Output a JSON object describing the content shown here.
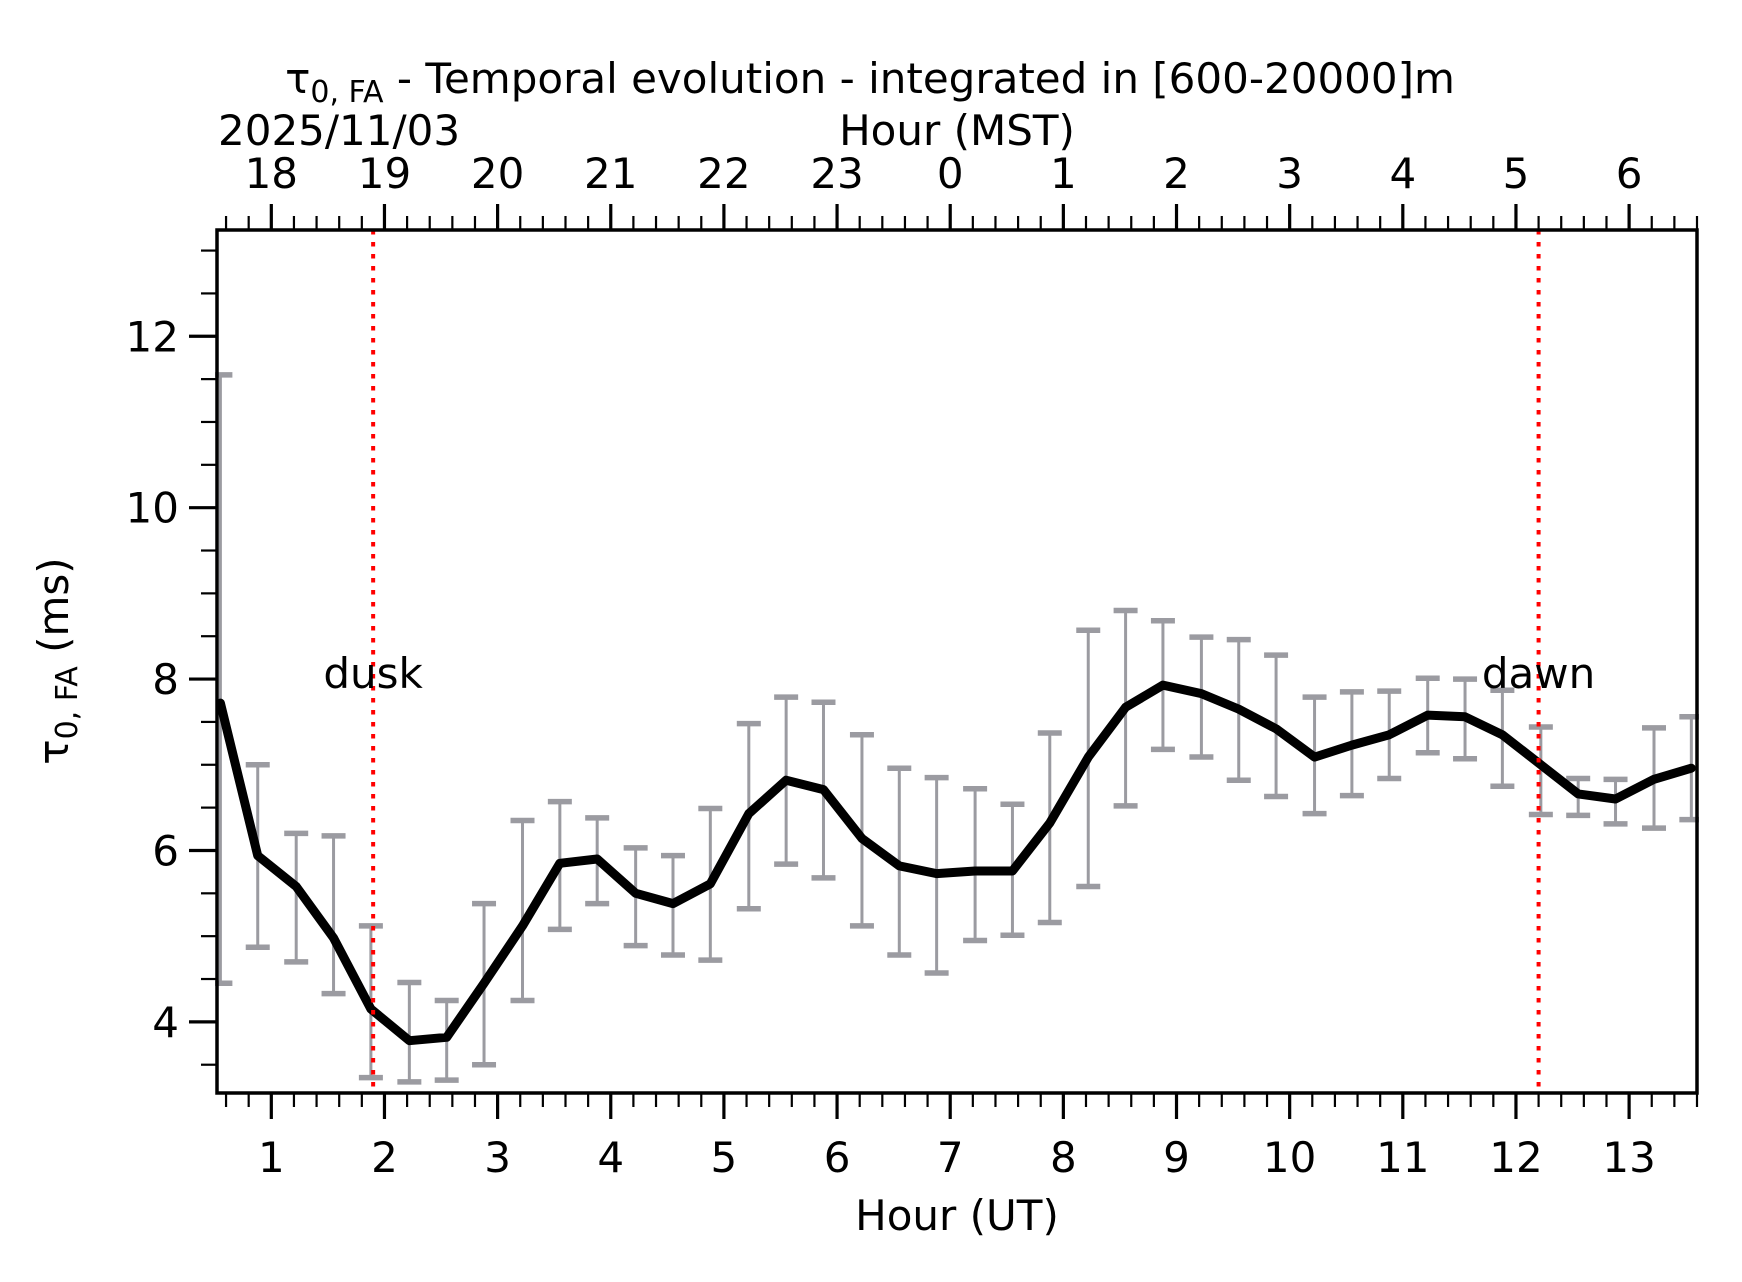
{
  "figure": {
    "date_label": "2025/11/03"
  },
  "chart_data": {
    "type": "line",
    "title_parts": {
      "tau": "τ",
      "sub": "0, FA",
      "rest": " - Temporal evolution - integrated in [600-20000]m"
    },
    "title_plain": "τ0,FA - Temporal evolution - integrated in [600-20000]m",
    "date_label": "2025/11/03",
    "xlabel_bottom": "Hour (UT)",
    "xlabel_top": "Hour (MST)",
    "ylabel_parts": {
      "tau": "τ",
      "sub": "0, FA",
      "units": " (ms)"
    },
    "xlim": [
      0.52,
      13.6
    ],
    "ylim": [
      3.17,
      13.24
    ],
    "x_major_ticks": [
      1,
      2,
      3,
      4,
      5,
      6,
      7,
      8,
      9,
      10,
      11,
      12,
      13
    ],
    "x_top_tick_labels": [
      "18",
      "19",
      "20",
      "21",
      "22",
      "23",
      "0",
      "1",
      "2",
      "3",
      "4",
      "5",
      "6"
    ],
    "y_major_ticks": [
      4,
      6,
      8,
      10,
      12
    ],
    "x_minor_step": 0.2,
    "y_minor_step": 0.5,
    "grid": false,
    "line_color": "#000000",
    "error_bar_color": "#9b9ba1",
    "annotation_color": "#ff0000",
    "annotations": [
      {
        "label": "dusk",
        "x": 1.9
      },
      {
        "label": "dawn",
        "x": 12.2
      }
    ],
    "series": {
      "name": "tau0_FA_mean_with_std",
      "x": [
        0.55,
        0.88,
        1.22,
        1.55,
        1.88,
        2.22,
        2.55,
        2.88,
        3.22,
        3.55,
        3.88,
        4.22,
        4.55,
        4.88,
        5.22,
        5.55,
        5.88,
        6.22,
        6.55,
        6.88,
        7.22,
        7.55,
        7.88,
        8.22,
        8.55,
        8.88,
        9.22,
        9.55,
        9.88,
        10.22,
        10.55,
        10.88,
        11.22,
        11.55,
        11.88,
        12.22,
        12.55,
        12.88,
        13.22,
        13.55
      ],
      "y": [
        7.72,
        5.94,
        5.58,
        4.98,
        4.15,
        3.78,
        3.82,
        4.45,
        5.12,
        5.85,
        5.9,
        5.5,
        5.38,
        5.61,
        6.43,
        6.82,
        6.71,
        6.14,
        5.82,
        5.73,
        5.76,
        5.76,
        6.32,
        7.09,
        7.67,
        7.93,
        7.83,
        7.65,
        7.42,
        7.09,
        7.23,
        7.35,
        7.58,
        7.56,
        7.35,
        7.0,
        6.66,
        6.6,
        6.83,
        6.96
      ],
      "err_lo": [
        4.45,
        4.87,
        4.7,
        4.33,
        3.35,
        3.3,
        3.32,
        3.5,
        4.25,
        5.08,
        5.38,
        4.89,
        4.78,
        4.72,
        5.32,
        5.84,
        5.68,
        5.12,
        4.78,
        4.57,
        4.95,
        5.01,
        5.16,
        5.58,
        6.52,
        7.18,
        7.09,
        6.82,
        6.63,
        6.43,
        6.64,
        6.84,
        7.14,
        7.07,
        6.75,
        6.42,
        6.41,
        6.31,
        6.26,
        6.36
      ],
      "err_hi": [
        11.55,
        7.0,
        6.2,
        6.17,
        5.12,
        4.46,
        4.25,
        5.38,
        6.35,
        6.57,
        6.38,
        6.03,
        5.94,
        6.49,
        7.48,
        7.79,
        7.73,
        7.35,
        6.96,
        6.85,
        6.72,
        6.54,
        7.37,
        8.57,
        8.8,
        8.68,
        8.49,
        8.46,
        8.28,
        7.79,
        7.85,
        7.86,
        8.01,
        8.0,
        7.87,
        7.44,
        6.84,
        6.83,
        7.43,
        7.56
      ]
    }
  }
}
